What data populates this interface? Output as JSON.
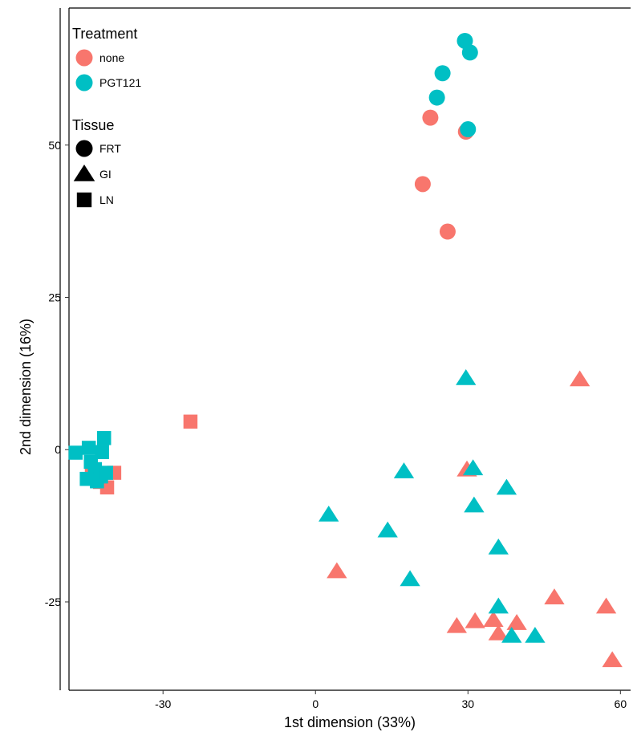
{
  "chart_data": {
    "type": "scatter",
    "title": "",
    "xlabel": "1st dimension (33%)",
    "ylabel": "2nd dimension (16%)",
    "xlim": [
      -48.5,
      62
    ],
    "ylim": [
      -39.5,
      72.5
    ],
    "xticks": [
      -30,
      0,
      30,
      60
    ],
    "yticks": [
      -25,
      0,
      25,
      50
    ],
    "grid": false,
    "legend_position": "top-left",
    "color_legend": {
      "title": "Treatment",
      "entries": [
        {
          "name": "none",
          "color": "#F8766D"
        },
        {
          "name": "PGT121",
          "color": "#00BFC4"
        }
      ]
    },
    "shape_legend": {
      "title": "Tissue",
      "entries": [
        {
          "name": "FRT",
          "shape": "circle"
        },
        {
          "name": "GI",
          "shape": "triangle"
        },
        {
          "name": "LN",
          "shape": "square"
        }
      ]
    },
    "points": [
      {
        "x": 22.6,
        "y": 54.5,
        "treatment": "none",
        "tissue": "FRT"
      },
      {
        "x": 29.6,
        "y": 52.2,
        "treatment": "none",
        "tissue": "FRT"
      },
      {
        "x": 21.1,
        "y": 43.6,
        "treatment": "none",
        "tissue": "FRT"
      },
      {
        "x": 26.0,
        "y": 35.8,
        "treatment": "none",
        "tissue": "FRT"
      },
      {
        "x": 29.4,
        "y": 67.1,
        "treatment": "PGT121",
        "tissue": "FRT"
      },
      {
        "x": 30.4,
        "y": 65.2,
        "treatment": "PGT121",
        "tissue": "FRT"
      },
      {
        "x": 25.0,
        "y": 61.8,
        "treatment": "PGT121",
        "tissue": "FRT"
      },
      {
        "x": 23.9,
        "y": 57.8,
        "treatment": "PGT121",
        "tissue": "FRT"
      },
      {
        "x": 30.0,
        "y": 52.6,
        "treatment": "PGT121",
        "tissue": "FRT"
      },
      {
        "x": 52.0,
        "y": 11.5,
        "treatment": "none",
        "tissue": "GI"
      },
      {
        "x": 29.8,
        "y": -3.3,
        "treatment": "none",
        "tissue": "GI"
      },
      {
        "x": 4.2,
        "y": -20.0,
        "treatment": "none",
        "tissue": "GI"
      },
      {
        "x": 47.0,
        "y": -24.3,
        "treatment": "none",
        "tissue": "GI"
      },
      {
        "x": 57.2,
        "y": -25.8,
        "treatment": "none",
        "tissue": "GI"
      },
      {
        "x": 27.8,
        "y": -29.0,
        "treatment": "none",
        "tissue": "GI"
      },
      {
        "x": 31.4,
        "y": -28.2,
        "treatment": "none",
        "tissue": "GI"
      },
      {
        "x": 35.0,
        "y": -28.0,
        "treatment": "none",
        "tissue": "GI"
      },
      {
        "x": 39.6,
        "y": -28.5,
        "treatment": "none",
        "tissue": "GI"
      },
      {
        "x": 36.0,
        "y": -30.2,
        "treatment": "none",
        "tissue": "GI"
      },
      {
        "x": 58.4,
        "y": -34.6,
        "treatment": "none",
        "tissue": "GI"
      },
      {
        "x": 29.6,
        "y": 11.7,
        "treatment": "PGT121",
        "tissue": "GI"
      },
      {
        "x": 17.4,
        "y": -3.6,
        "treatment": "PGT121",
        "tissue": "GI"
      },
      {
        "x": 31.0,
        "y": -3.1,
        "treatment": "PGT121",
        "tissue": "GI"
      },
      {
        "x": 37.6,
        "y": -6.3,
        "treatment": "PGT121",
        "tissue": "GI"
      },
      {
        "x": 31.2,
        "y": -9.2,
        "treatment": "PGT121",
        "tissue": "GI"
      },
      {
        "x": 2.6,
        "y": -10.7,
        "treatment": "PGT121",
        "tissue": "GI"
      },
      {
        "x": 14.2,
        "y": -13.3,
        "treatment": "PGT121",
        "tissue": "GI"
      },
      {
        "x": 36.0,
        "y": -16.1,
        "treatment": "PGT121",
        "tissue": "GI"
      },
      {
        "x": 18.6,
        "y": -21.3,
        "treatment": "PGT121",
        "tissue": "GI"
      },
      {
        "x": 36.0,
        "y": -25.8,
        "treatment": "PGT121",
        "tissue": "GI"
      },
      {
        "x": 38.6,
        "y": -30.6,
        "treatment": "PGT121",
        "tissue": "GI"
      },
      {
        "x": 43.2,
        "y": -30.6,
        "treatment": "PGT121",
        "tissue": "GI"
      },
      {
        "x": -24.6,
        "y": 4.6,
        "treatment": "none",
        "tissue": "LN"
      },
      {
        "x": -39.6,
        "y": -3.8,
        "treatment": "none",
        "tissue": "LN"
      },
      {
        "x": -42.4,
        "y": -5.3,
        "treatment": "none",
        "tissue": "LN"
      },
      {
        "x": -41.0,
        "y": -6.2,
        "treatment": "none",
        "tissue": "LN"
      },
      {
        "x": -44.0,
        "y": -4.0,
        "treatment": "none",
        "tissue": "LN"
      },
      {
        "x": -41.6,
        "y": 1.9,
        "treatment": "PGT121",
        "tissue": "LN"
      },
      {
        "x": -44.6,
        "y": 0.3,
        "treatment": "PGT121",
        "tissue": "LN"
      },
      {
        "x": -47.2,
        "y": -0.5,
        "treatment": "PGT121",
        "tissue": "LN"
      },
      {
        "x": -42.0,
        "y": -0.4,
        "treatment": "PGT121",
        "tissue": "LN"
      },
      {
        "x": -44.2,
        "y": -2.0,
        "treatment": "PGT121",
        "tissue": "LN"
      },
      {
        "x": -43.4,
        "y": -3.2,
        "treatment": "PGT121",
        "tissue": "LN"
      },
      {
        "x": -45.0,
        "y": -4.8,
        "treatment": "PGT121",
        "tissue": "LN"
      },
      {
        "x": -43.0,
        "y": -5.2,
        "treatment": "PGT121",
        "tissue": "LN"
      },
      {
        "x": -42.2,
        "y": -4.4,
        "treatment": "PGT121",
        "tissue": "LN"
      },
      {
        "x": -41.2,
        "y": -3.8,
        "treatment": "PGT121",
        "tissue": "LN"
      }
    ]
  }
}
